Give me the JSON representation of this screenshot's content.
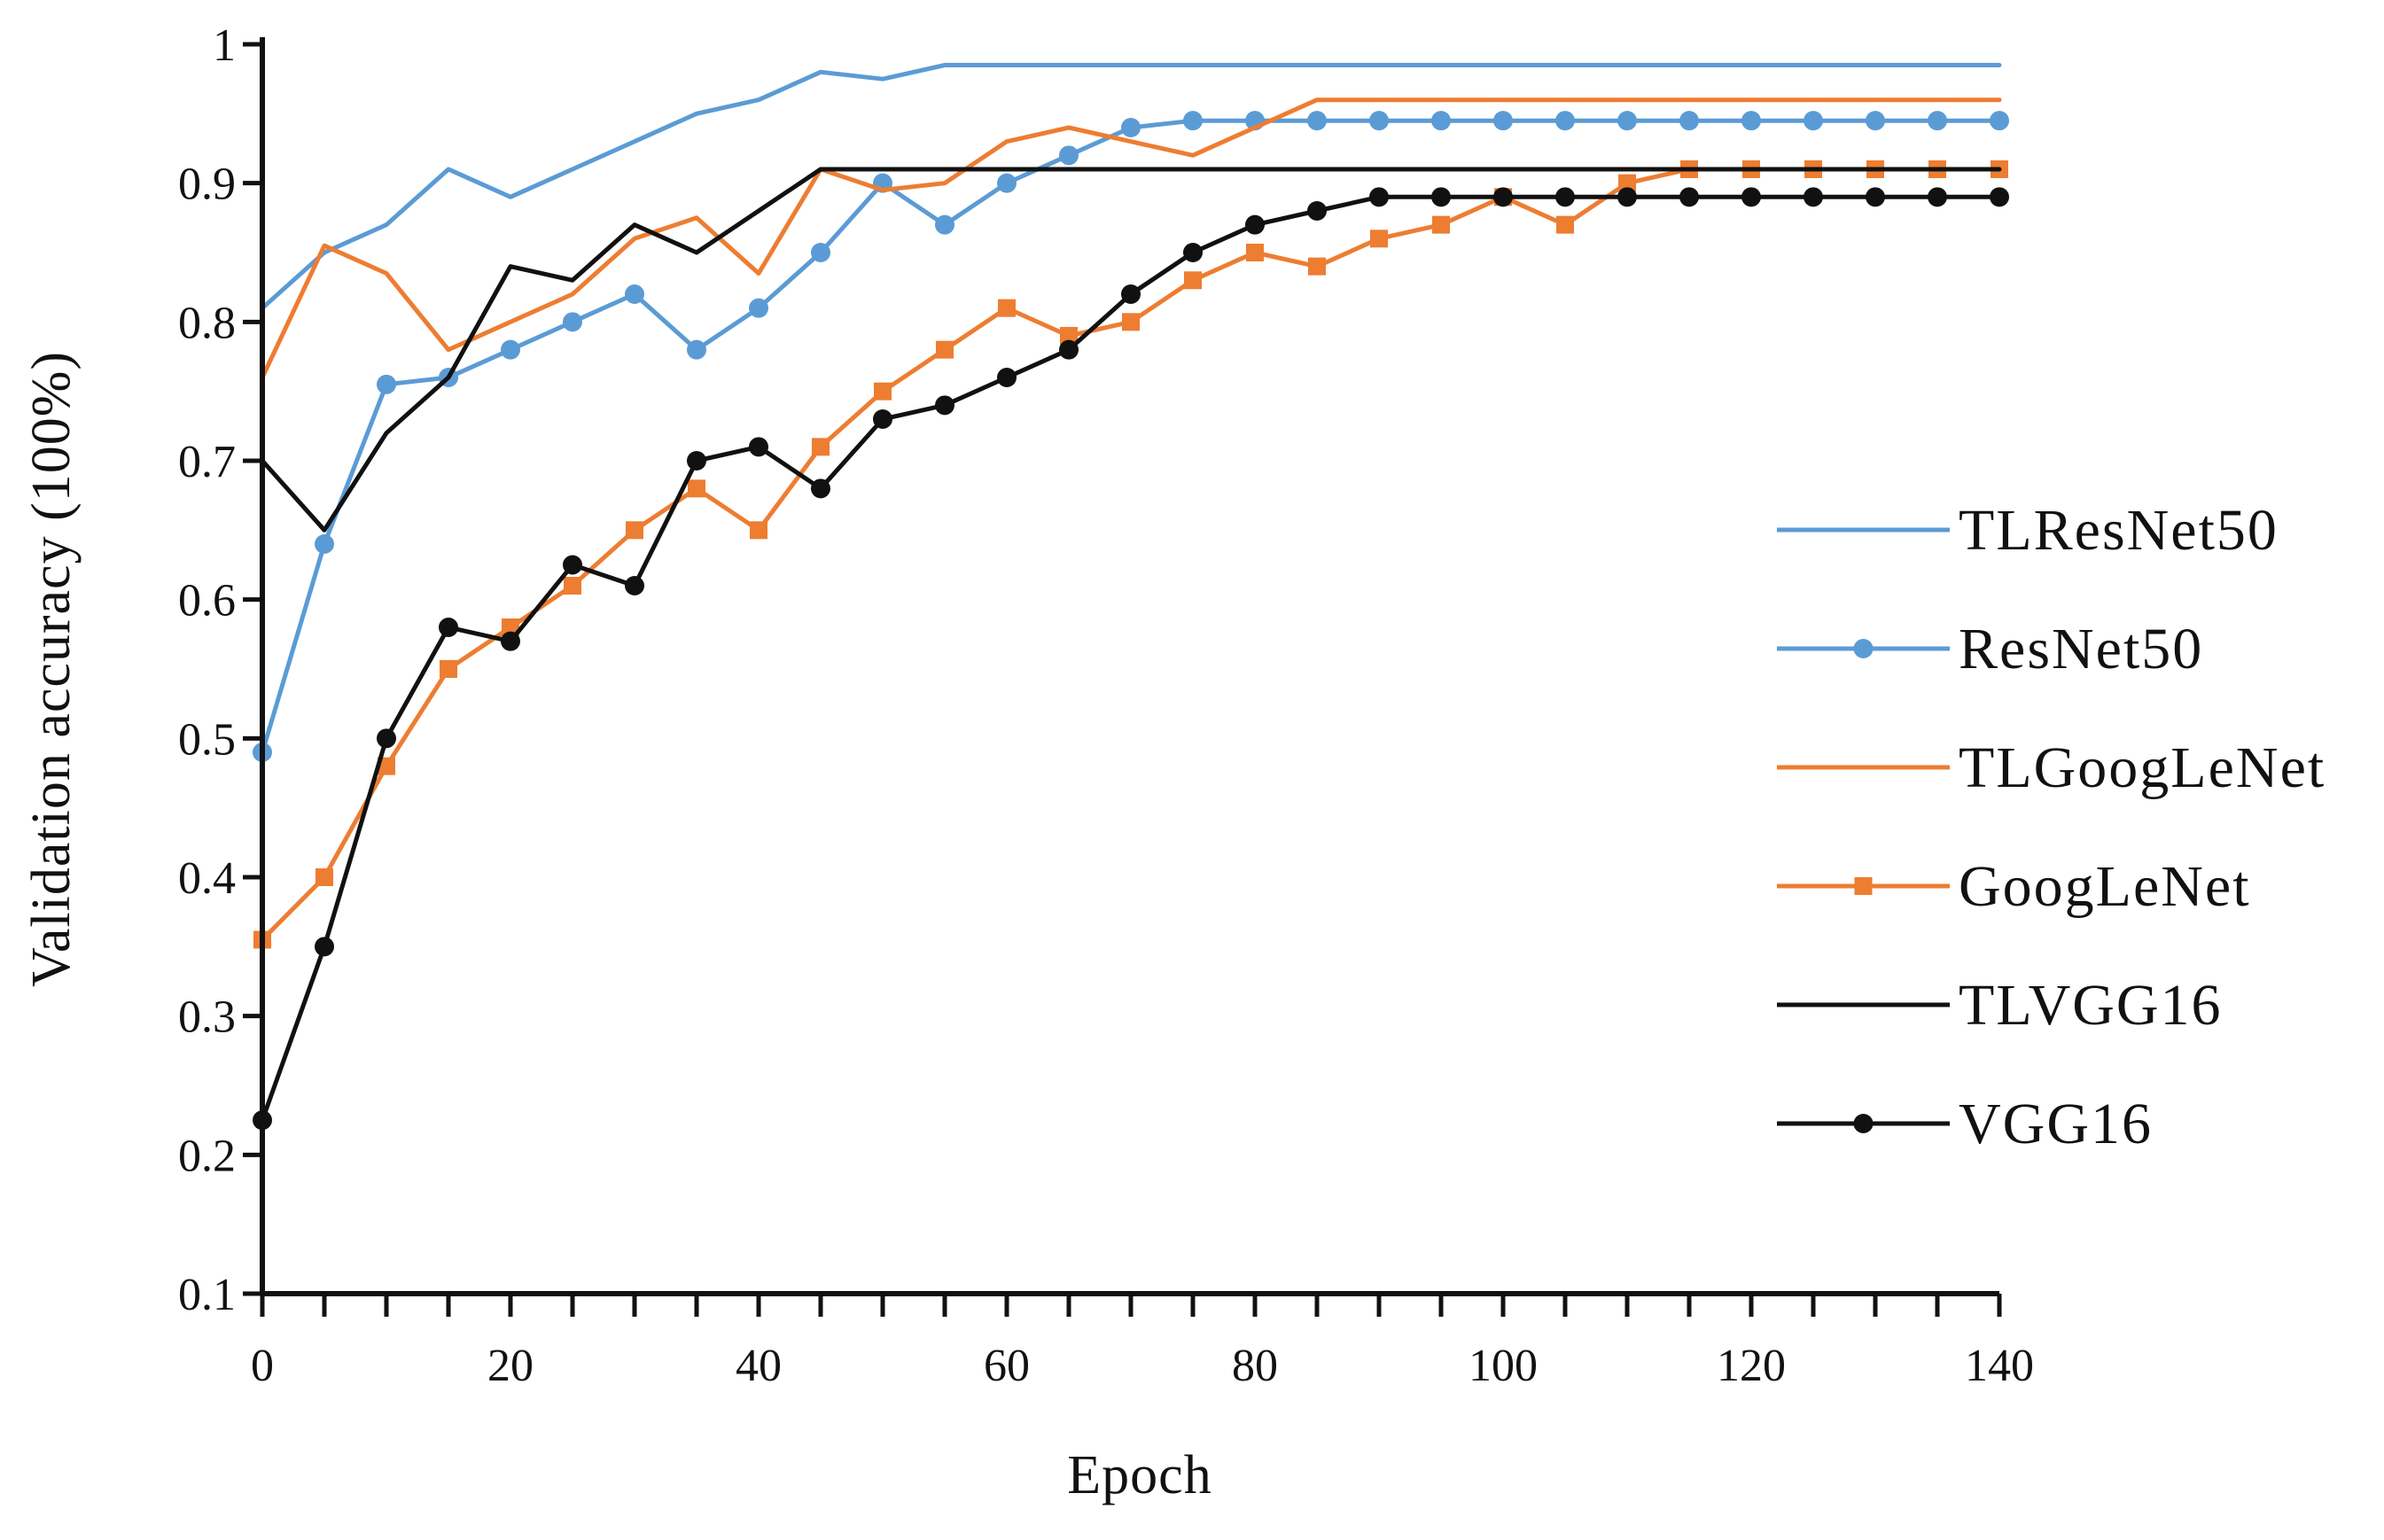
{
  "chart_data": {
    "type": "line",
    "title": "",
    "xlabel": "Epoch",
    "ylabel": "Validation accuracy (100%)",
    "xlim": [
      0,
      140
    ],
    "ylim": [
      0.1,
      1.0
    ],
    "x_ticks": [
      0,
      20,
      40,
      60,
      80,
      100,
      120,
      140
    ],
    "x_tick_labels": [
      "0",
      "20",
      "40",
      "60",
      "80",
      "100",
      "120",
      "140"
    ],
    "y_ticks": [
      0.1,
      0.2,
      0.3,
      0.4,
      0.5,
      0.6,
      0.7,
      0.8,
      0.9,
      1.0
    ],
    "y_tick_labels": [
      "0.1",
      "0.2",
      "0.3",
      "0.4",
      "0.5",
      "0.6",
      "0.7",
      "0.8",
      "0.9",
      "1"
    ],
    "x_minor_ticks": [
      5,
      10,
      15,
      25,
      30,
      35,
      45,
      50,
      55,
      65,
      70,
      75,
      85,
      90,
      95,
      105,
      110,
      115,
      125,
      130,
      135
    ],
    "grid": false,
    "legend_position": "right",
    "series": [
      {
        "name": "TLResNet50",
        "color": "#5b9bd5",
        "marker": "none",
        "x": [
          0,
          5,
          10,
          15,
          20,
          25,
          30,
          35,
          40,
          45,
          50,
          55,
          60,
          65,
          70,
          75,
          80,
          85,
          90,
          95,
          100,
          105,
          110,
          115,
          120,
          125,
          130,
          135,
          140
        ],
        "y": [
          0.81,
          0.85,
          0.87,
          0.91,
          0.89,
          0.91,
          0.93,
          0.95,
          0.96,
          0.98,
          0.975,
          0.985,
          0.985,
          0.985,
          0.985,
          0.985,
          0.985,
          0.985,
          0.985,
          0.985,
          0.985,
          0.985,
          0.985,
          0.985,
          0.985,
          0.985,
          0.985,
          0.985,
          0.985
        ]
      },
      {
        "name": "ResNet50",
        "color": "#5b9bd5",
        "marker": "circle",
        "x": [
          0,
          5,
          10,
          15,
          20,
          25,
          30,
          35,
          40,
          45,
          50,
          55,
          60,
          65,
          70,
          75,
          80,
          85,
          90,
          95,
          100,
          105,
          110,
          115,
          120,
          125,
          130,
          135,
          140
        ],
        "y": [
          0.49,
          0.64,
          0.755,
          0.76,
          0.78,
          0.8,
          0.82,
          0.78,
          0.81,
          0.85,
          0.9,
          0.87,
          0.9,
          0.92,
          0.94,
          0.945,
          0.945,
          0.945,
          0.945,
          0.945,
          0.945,
          0.945,
          0.945,
          0.945,
          0.945,
          0.945,
          0.945,
          0.945,
          0.945
        ]
      },
      {
        "name": "TLGoogLeNet",
        "color": "#ed7d31",
        "marker": "none",
        "x": [
          0,
          5,
          10,
          15,
          20,
          25,
          30,
          35,
          40,
          45,
          50,
          55,
          60,
          65,
          70,
          75,
          80,
          85,
          90,
          95,
          100,
          105,
          110,
          115,
          120,
          125,
          130,
          135,
          140
        ],
        "y": [
          0.76,
          0.855,
          0.835,
          0.78,
          0.8,
          0.82,
          0.86,
          0.875,
          0.835,
          0.91,
          0.895,
          0.9,
          0.93,
          0.94,
          0.93,
          0.92,
          0.94,
          0.96,
          0.96,
          0.96,
          0.96,
          0.96,
          0.96,
          0.96,
          0.96,
          0.96,
          0.96,
          0.96,
          0.96
        ]
      },
      {
        "name": "GoogLeNet",
        "color": "#ed7d31",
        "marker": "square",
        "x": [
          0,
          5,
          10,
          15,
          20,
          25,
          30,
          35,
          40,
          45,
          50,
          55,
          60,
          65,
          70,
          75,
          80,
          85,
          90,
          95,
          100,
          105,
          110,
          115,
          120,
          125,
          130,
          135,
          140
        ],
        "y": [
          0.355,
          0.4,
          0.48,
          0.55,
          0.58,
          0.61,
          0.65,
          0.68,
          0.65,
          0.71,
          0.75,
          0.78,
          0.81,
          0.79,
          0.8,
          0.83,
          0.85,
          0.84,
          0.86,
          0.87,
          0.89,
          0.87,
          0.9,
          0.91,
          0.91,
          0.91,
          0.91,
          0.91,
          0.91
        ]
      },
      {
        "name": "TLVGG16",
        "color": "#111111",
        "marker": "none",
        "x": [
          0,
          5,
          10,
          15,
          20,
          25,
          30,
          35,
          40,
          45,
          50,
          55,
          60,
          65,
          70,
          75,
          80,
          85,
          90,
          95,
          100,
          105,
          110,
          115,
          120,
          125,
          130,
          135,
          140
        ],
        "y": [
          0.7,
          0.65,
          0.72,
          0.76,
          0.84,
          0.83,
          0.87,
          0.85,
          0.88,
          0.91,
          0.91,
          0.91,
          0.91,
          0.91,
          0.91,
          0.91,
          0.91,
          0.91,
          0.91,
          0.91,
          0.91,
          0.91,
          0.91,
          0.91,
          0.91,
          0.91,
          0.91,
          0.91,
          0.91
        ]
      },
      {
        "name": "VGG16",
        "color": "#111111",
        "marker": "circle",
        "x": [
          0,
          5,
          10,
          15,
          20,
          25,
          30,
          35,
          40,
          45,
          50,
          55,
          60,
          65,
          70,
          75,
          80,
          85,
          90,
          95,
          100,
          105,
          110,
          115,
          120,
          125,
          130,
          135,
          140
        ],
        "y": [
          0.225,
          0.35,
          0.5,
          0.58,
          0.57,
          0.625,
          0.61,
          0.7,
          0.71,
          0.68,
          0.73,
          0.74,
          0.76,
          0.78,
          0.82,
          0.85,
          0.87,
          0.88,
          0.89,
          0.89,
          0.89,
          0.89,
          0.89,
          0.89,
          0.89,
          0.89,
          0.89,
          0.89,
          0.89
        ]
      }
    ]
  }
}
